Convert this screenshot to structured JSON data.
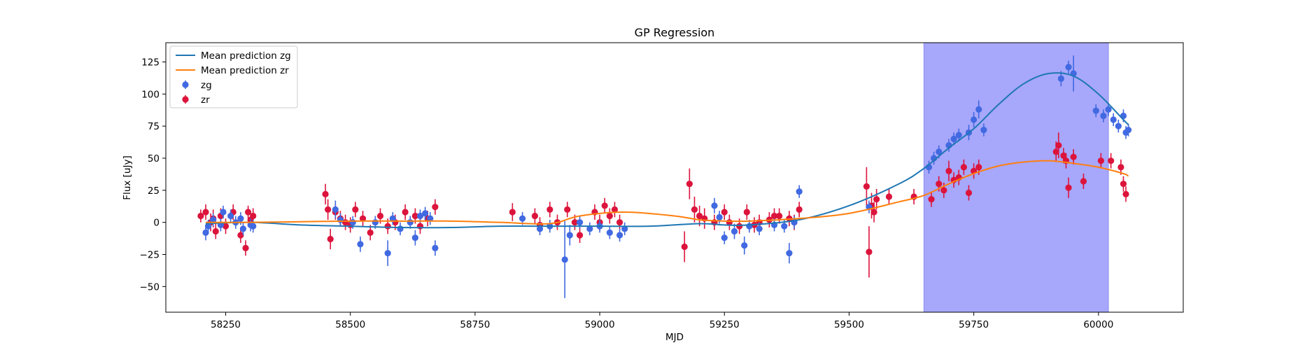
{
  "chart_data": {
    "type": "scatter",
    "title": "GP Regression",
    "xlabel": "MJD",
    "ylabel": "Flux [uJy]",
    "xlim": [
      58130,
      60170
    ],
    "ylim": [
      -70,
      140
    ],
    "xticks": [
      58250,
      58500,
      58750,
      59000,
      59250,
      59500,
      59750,
      60000
    ],
    "yticks": [
      -50,
      -25,
      0,
      25,
      50,
      75,
      100,
      125
    ],
    "highlight_span": {
      "x0": 59650,
      "x1": 60020,
      "color": "#a7a7fb"
    },
    "legend": {
      "placement": "top-left",
      "entries": [
        "Mean prediction zg",
        "Mean prediction zr",
        "zg",
        "zr"
      ]
    },
    "colors": {
      "zg_line": "#1f77b4",
      "zr_line": "#ff7f0e",
      "zg_points": "#4169e1",
      "zr_points": "#dc143c"
    },
    "series": [
      {
        "name": "Mean prediction zg",
        "kind": "line",
        "x": [
          58210,
          58300,
          58400,
          58500,
          58600,
          58700,
          58800,
          58900,
          59000,
          59100,
          59200,
          59250,
          59300,
          59400,
          59500,
          59600,
          59650,
          59700,
          59750,
          59800,
          59850,
          59900,
          59950,
          60000,
          60050,
          60060
        ],
        "y": [
          -1,
          0,
          -2,
          -3,
          -4,
          -4,
          -3,
          -3,
          -3,
          -3,
          -1,
          -2,
          -2,
          2,
          13,
          30,
          42,
          58,
          73,
          92,
          108,
          116,
          114,
          100,
          80,
          76
        ]
      },
      {
        "name": "Mean prediction zr",
        "kind": "line",
        "x": [
          58210,
          58300,
          58400,
          58500,
          58600,
          58700,
          58800,
          58900,
          58960,
          59050,
          59150,
          59200,
          59250,
          59300,
          59400,
          59500,
          59600,
          59650,
          59700,
          59750,
          59800,
          59850,
          59900,
          59950,
          60000,
          60050,
          60060
        ],
        "y": [
          0,
          0,
          0.5,
          1,
          1,
          1,
          0,
          -1,
          5,
          8,
          5,
          2,
          1,
          1,
          3,
          7,
          16,
          21,
          30,
          38,
          44,
          47,
          48,
          46,
          43,
          38,
          36
        ]
      },
      {
        "name": "zg",
        "kind": "errorbar",
        "x": [
          58210,
          58215,
          58225,
          58240,
          58245,
          58260,
          58270,
          58280,
          58285,
          58300,
          58305,
          58470,
          58480,
          58505,
          58520,
          58550,
          58575,
          58585,
          58600,
          58620,
          58630,
          58640,
          58650,
          58660,
          58670,
          58845,
          58880,
          58900,
          58930,
          58940,
          58960,
          58980,
          59000,
          59020,
          59040,
          59050,
          59230,
          59240,
          59250,
          59270,
          59290,
          59300,
          59320,
          59350,
          59370,
          59380,
          59390,
          59400,
          59540,
          59660,
          59670,
          59680,
          59700,
          59710,
          59720,
          59740,
          59750,
          59760,
          59770,
          59925,
          59940,
          59950,
          59995,
          60010,
          60020,
          60030,
          60040,
          60050,
          60055,
          60060
        ],
        "y": [
          -8,
          -3,
          2,
          -2,
          8,
          5,
          0,
          3,
          -5,
          -2,
          -3,
          10,
          2,
          0,
          -17,
          0,
          -24,
          3,
          -5,
          0,
          -12,
          5,
          7,
          3,
          -20,
          3,
          -5,
          -3,
          -29,
          -10,
          0,
          -5,
          -3,
          -8,
          -10,
          -5,
          13,
          4,
          -12,
          -7,
          -18,
          -3,
          -5,
          -2,
          -3,
          -24,
          0,
          24,
          12,
          43,
          50,
          55,
          60,
          65,
          68,
          70,
          80,
          88,
          72,
          112,
          121,
          116,
          87,
          83,
          88,
          80,
          75,
          83,
          70,
          72
        ],
        "err": [
          6,
          5,
          5,
          5,
          5,
          5,
          5,
          5,
          5,
          5,
          5,
          7,
          5,
          5,
          6,
          5,
          10,
          5,
          5,
          5,
          6,
          5,
          5,
          5,
          6,
          5,
          5,
          5,
          30,
          8,
          5,
          5,
          5,
          5,
          5,
          5,
          6,
          5,
          5,
          6,
          7,
          5,
          5,
          5,
          5,
          8,
          5,
          5,
          5,
          5,
          5,
          5,
          5,
          5,
          5,
          6,
          6,
          7,
          5,
          6,
          5,
          14,
          5,
          5,
          5,
          5,
          5,
          5,
          5,
          5
        ]
      },
      {
        "name": "zr",
        "kind": "errorbar",
        "x": [
          58200,
          58210,
          58220,
          58225,
          58230,
          58240,
          58250,
          58265,
          58280,
          58290,
          58295,
          58300,
          58305,
          58450,
          58455,
          58460,
          58470,
          58480,
          58490,
          58500,
          58510,
          58525,
          58540,
          58560,
          58575,
          58590,
          58610,
          58630,
          58640,
          58655,
          58670,
          58825,
          58870,
          58880,
          58900,
          58915,
          58935,
          58950,
          58960,
          58990,
          59000,
          59010,
          59020,
          59030,
          59040,
          59170,
          59180,
          59190,
          59200,
          59210,
          59230,
          59250,
          59260,
          59280,
          59295,
          59310,
          59320,
          59340,
          59350,
          59360,
          59380,
          59390,
          59400,
          59535,
          59540,
          59545,
          59550,
          59555,
          59580,
          59630,
          59665,
          59680,
          59690,
          59700,
          59710,
          59720,
          59730,
          59740,
          59750,
          59760,
          59915,
          59920,
          59930,
          59935,
          59940,
          59950,
          59970,
          60005,
          60025,
          60045,
          60050,
          60055
        ],
        "y": [
          5,
          8,
          0,
          3,
          -7,
          5,
          -3,
          8,
          -10,
          -20,
          8,
          2,
          5,
          22,
          10,
          -13,
          8,
          3,
          0,
          -2,
          10,
          3,
          -8,
          5,
          -3,
          0,
          8,
          5,
          -3,
          3,
          12,
          8,
          5,
          -2,
          10,
          0,
          10,
          0,
          -10,
          8,
          0,
          13,
          5,
          10,
          0,
          -19,
          30,
          10,
          5,
          3,
          0,
          8,
          0,
          -3,
          8,
          -2,
          0,
          2,
          5,
          5,
          3,
          0,
          10,
          28,
          -23,
          13,
          8,
          18,
          20,
          20,
          18,
          30,
          25,
          40,
          33,
          35,
          43,
          23,
          40,
          43,
          55,
          60,
          52,
          48,
          27,
          51,
          32,
          48,
          48,
          43,
          30,
          22
        ],
        "err": [
          5,
          6,
          7,
          7,
          6,
          6,
          6,
          6,
          6,
          6,
          5,
          6,
          6,
          8,
          8,
          8,
          6,
          6,
          6,
          6,
          6,
          6,
          6,
          6,
          6,
          6,
          6,
          6,
          6,
          6,
          6,
          7,
          6,
          6,
          6,
          6,
          6,
          6,
          6,
          6,
          6,
          6,
          6,
          6,
          6,
          12,
          12,
          10,
          8,
          8,
          6,
          6,
          6,
          6,
          6,
          6,
          6,
          6,
          6,
          6,
          6,
          6,
          6,
          15,
          20,
          10,
          8,
          8,
          6,
          6,
          6,
          6,
          6,
          8,
          6,
          6,
          6,
          6,
          6,
          6,
          8,
          10,
          6,
          6,
          8,
          6,
          6,
          6,
          6,
          6,
          6,
          6
        ]
      }
    ]
  }
}
